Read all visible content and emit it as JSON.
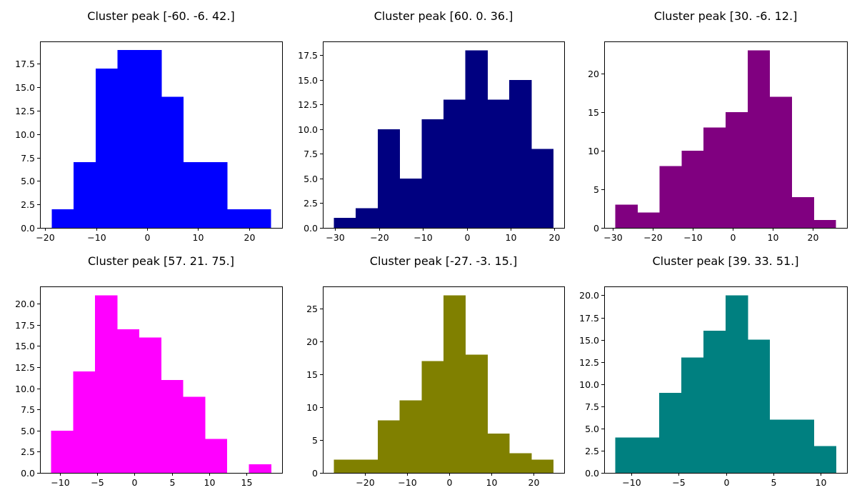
{
  "chart_data": [
    {
      "type": "histogram",
      "title": "Cluster peak [-60.  -6.  42.]",
      "color": "#0000ff",
      "bin_edges": [
        -18.7,
        -14.4,
        -10.1,
        -5.8,
        -1.5,
        2.8,
        7.1,
        11.4,
        15.7,
        20.0,
        24.3
      ],
      "counts": [
        2,
        7,
        17,
        19,
        19,
        14,
        7,
        7,
        2,
        2
      ],
      "xlim": [
        -21,
        26.5
      ],
      "ylim": [
        0,
        19.9
      ],
      "xticks": [
        -20,
        -10,
        0,
        10,
        20
      ],
      "xtick_labels": [
        "−20",
        "−10",
        "0",
        "10",
        "20"
      ],
      "yticks": [
        0,
        2.5,
        5,
        7.5,
        10,
        12.5,
        15,
        17.5
      ],
      "ytick_labels": [
        "0.0",
        "2.5",
        "5.0",
        "7.5",
        "10.0",
        "12.5",
        "15.0",
        "17.5"
      ]
    },
    {
      "type": "histogram",
      "title": "Cluster peak [60.  0. 36.]",
      "color": "#000080",
      "bin_edges": [
        -30.3,
        -25.3,
        -20.3,
        -15.3,
        -10.3,
        -5.3,
        -0.3,
        4.7,
        9.7,
        14.7,
        19.7
      ],
      "counts": [
        1,
        2,
        10,
        5,
        11,
        13,
        18,
        13,
        15,
        8
      ],
      "xlim": [
        -32.8,
        22.2
      ],
      "ylim": [
        0,
        18.9
      ],
      "xticks": [
        -30,
        -20,
        -10,
        0,
        10,
        20
      ],
      "xtick_labels": [
        "−30",
        "−20",
        "−10",
        "0",
        "10",
        "20"
      ],
      "yticks": [
        0,
        2.5,
        5,
        7.5,
        10,
        12.5,
        15,
        17.5
      ],
      "ytick_labels": [
        "0.0",
        "2.5",
        "5.0",
        "7.5",
        "10.0",
        "12.5",
        "15.0",
        "17.5"
      ]
    },
    {
      "type": "histogram",
      "title": "Cluster peak [30. -6. 12.]",
      "color": "#800080",
      "bin_edges": [
        -29.3,
        -23.8,
        -18.3,
        -12.8,
        -7.3,
        -1.8,
        3.7,
        9.2,
        14.7,
        20.2,
        25.7
      ],
      "counts": [
        3,
        2,
        8,
        10,
        13,
        15,
        23,
        17,
        4,
        1
      ],
      "xlim": [
        -32.1,
        28.5
      ],
      "ylim": [
        0,
        24.15
      ],
      "xticks": [
        -30,
        -20,
        -10,
        0,
        10,
        20
      ],
      "xtick_labels": [
        "−30",
        "−20",
        "−10",
        "0",
        "10",
        "20"
      ],
      "yticks": [
        0,
        5,
        10,
        15,
        20
      ],
      "ytick_labels": [
        "0",
        "5",
        "10",
        "15",
        "20"
      ]
    },
    {
      "type": "histogram",
      "title": "Cluster peak [57. 21. 75.]",
      "color": "#ff00ff",
      "bin_edges": [
        -11.2,
        -8.25,
        -5.3,
        -2.35,
        0.6,
        3.55,
        6.5,
        9.45,
        12.4,
        15.35,
        18.3
      ],
      "counts": [
        5,
        12,
        21,
        17,
        16,
        11,
        9,
        4,
        0,
        1
      ],
      "xlim": [
        -12.7,
        19.8
      ],
      "ylim": [
        0,
        22.05
      ],
      "xticks": [
        -10,
        -5,
        0,
        5,
        10,
        15
      ],
      "xtick_labels": [
        "−10",
        "−5",
        "0",
        "5",
        "10",
        "15"
      ],
      "yticks": [
        0,
        2.5,
        5,
        7.5,
        10,
        12.5,
        15,
        17.5,
        20
      ],
      "ytick_labels": [
        "0.0",
        "2.5",
        "5.0",
        "7.5",
        "10.0",
        "12.5",
        "15.0",
        "17.5",
        "20.0"
      ]
    },
    {
      "type": "histogram",
      "title": "Cluster peak [-27.  -3.  15.]",
      "color": "#808000",
      "bin_edges": [
        -27.3,
        -22.1,
        -16.9,
        -11.7,
        -6.5,
        -1.3,
        3.9,
        9.1,
        14.3,
        19.5,
        24.7
      ],
      "counts": [
        2,
        2,
        8,
        11,
        17,
        27,
        18,
        6,
        3,
        2
      ],
      "xlim": [
        -29.9,
        27.3
      ],
      "ylim": [
        0,
        28.35
      ],
      "xticks": [
        -20,
        -10,
        0,
        10,
        20
      ],
      "xtick_labels": [
        "−20",
        "−10",
        "0",
        "10",
        "20"
      ],
      "yticks": [
        0,
        5,
        10,
        15,
        20,
        25
      ],
      "ytick_labels": [
        "0",
        "5",
        "10",
        "15",
        "20",
        "25"
      ]
    },
    {
      "type": "histogram",
      "title": "Cluster peak [39. 33. 51.]",
      "color": "#008080",
      "bin_edges": [
        -11.7,
        -9.37,
        -7.04,
        -4.71,
        -2.38,
        -0.05,
        2.28,
        4.61,
        6.94,
        9.27,
        11.6
      ],
      "counts": [
        4,
        4,
        9,
        13,
        16,
        20,
        15,
        6,
        6,
        3
      ],
      "xlim": [
        -12.86,
        12.76
      ],
      "ylim": [
        0,
        21.0
      ],
      "xticks": [
        -10,
        -5,
        0,
        5,
        10
      ],
      "xtick_labels": [
        "−10",
        "−5",
        "0",
        "5",
        "10"
      ],
      "yticks": [
        0,
        2.5,
        5,
        7.5,
        10,
        12.5,
        15,
        17.5,
        20
      ],
      "ytick_labels": [
        "0.0",
        "2.5",
        "5.0",
        "7.5",
        "10.0",
        "12.5",
        "15.0",
        "17.5",
        "20.0"
      ]
    }
  ]
}
